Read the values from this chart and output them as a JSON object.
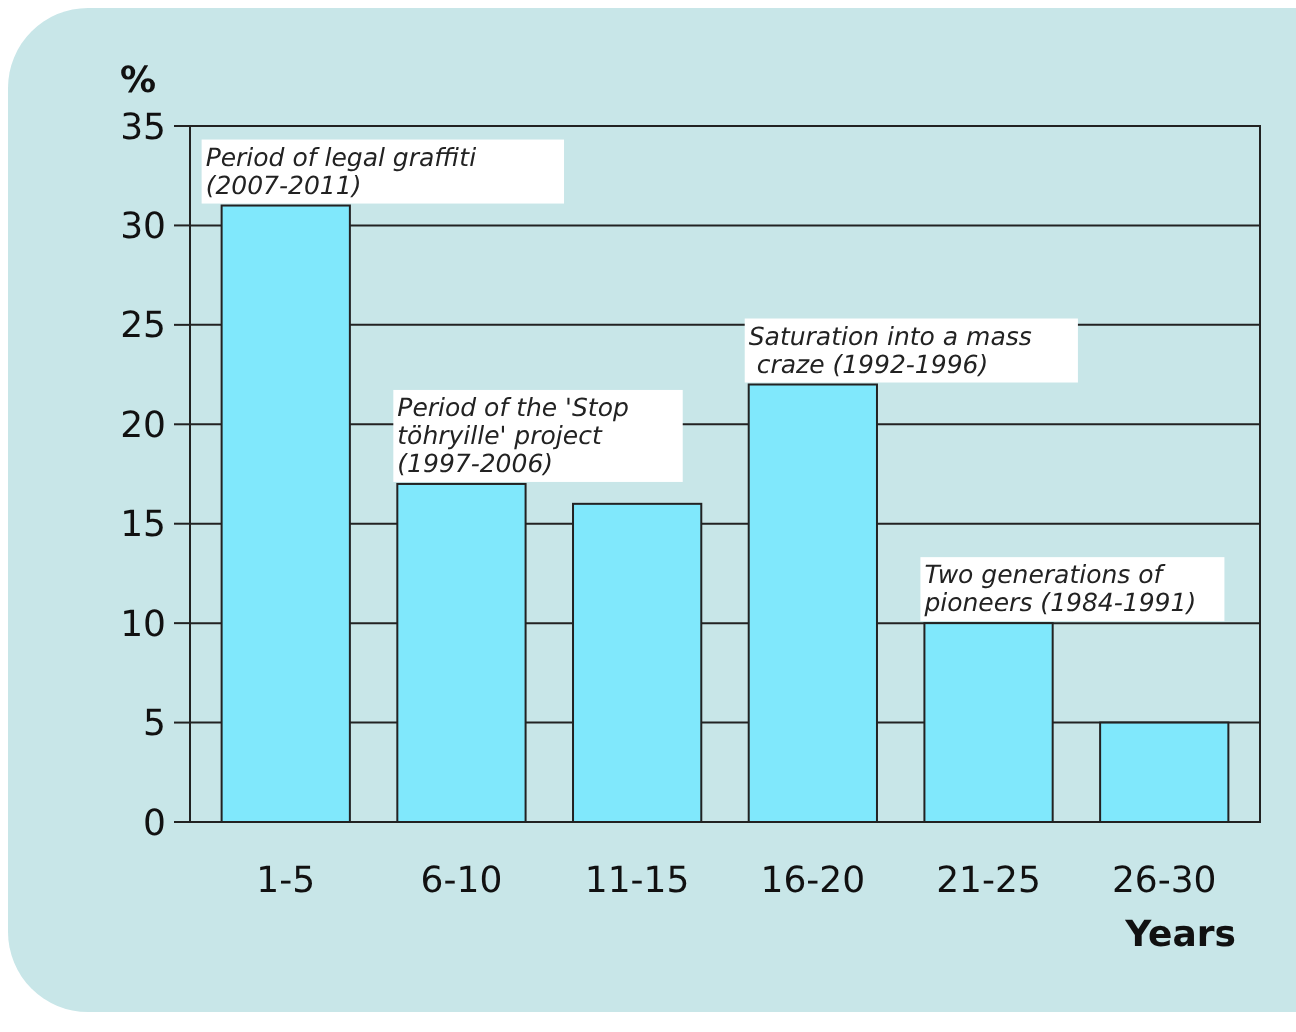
{
  "chart_data": {
    "type": "bar",
    "ylabel": "%",
    "xlabel": "Years",
    "categories": [
      "1-5",
      "6-10",
      "11-15",
      "16-20",
      "21-25",
      "26-30"
    ],
    "values": [
      31,
      17,
      16,
      22,
      10,
      5
    ],
    "color": "#80e8fc",
    "ylim": [
      0,
      35
    ],
    "yticks": [
      0,
      5,
      10,
      15,
      20,
      25,
      30,
      35
    ],
    "grid": "y",
    "annotations": [
      {
        "text": "Period of legal graffiti\n(2007-2011)",
        "x": "1-5",
        "y": 31
      },
      {
        "text": "Period of the 'Stop\ntöhryille' project\n(1997-2006)",
        "x": "6-10",
        "y": 17
      },
      {
        "text": "Saturation into a mass\n craze (1992-1996)",
        "x": "16-20",
        "y": 22
      },
      {
        "text": "Two generations of\npioneers (1984-1991)",
        "x": "21-25",
        "y": 10
      }
    ]
  }
}
